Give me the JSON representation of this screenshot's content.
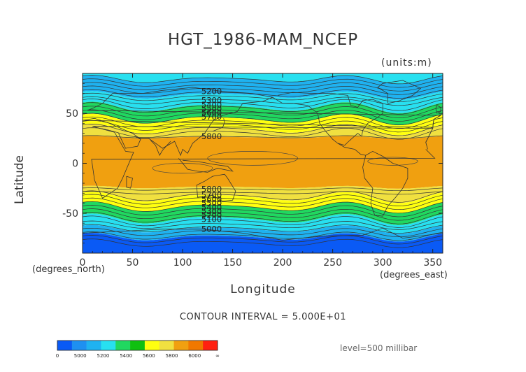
{
  "chart_data": {
    "type": "heatmap",
    "title": "HGT_1986-MAM_NCEP",
    "units_label": "(units:m)",
    "xlabel": "Longitude",
    "ylabel": "Latitude",
    "x_unit_label": "(degrees_east)",
    "y_unit_label": "(degrees_north)",
    "xlim": [
      0,
      360
    ],
    "ylim": [
      -90,
      90
    ],
    "x_ticks": [
      0,
      50,
      100,
      150,
      200,
      250,
      300,
      350
    ],
    "y_ticks": [
      -50,
      0,
      50
    ],
    "contour_interval_text": "CONTOUR INTERVAL = 5.000E+01",
    "level_text": "level=500 millibar",
    "contour_labels": [
      "5200",
      "5300",
      "5400",
      "5500",
      "5600",
      "5700",
      "5800",
      "5800",
      "5700",
      "5600",
      "5500",
      "5400",
      "5300",
      "5200",
      "5100",
      "5000"
    ],
    "colorbar": {
      "tick_labels": [
        "0",
        "5000",
        "5200",
        "5400",
        "5600",
        "5800",
        "6000",
        "∞"
      ],
      "colors": [
        "#0a5af5",
        "#1e90f0",
        "#1fb2f0",
        "#28e0f0",
        "#20d860",
        "#10c010",
        "#ffff10",
        "#f0e040",
        "#f0a010",
        "#f07800",
        "#ff2010"
      ]
    },
    "bands": [
      {
        "lat_top": 90,
        "lat_bottom": 84,
        "value_range": "5200-5300",
        "color": "#28e0f0"
      },
      {
        "lat_top": 84,
        "lat_bottom": 68,
        "value_range": "5100-5200",
        "color": "#1fb2f0"
      },
      {
        "lat_top": 68,
        "lat_bottom": 56,
        "value_range": "5200-5400",
        "color": "#28e0f0"
      },
      {
        "lat_top": 56,
        "lat_bottom": 44,
        "value_range": "5400-5600",
        "color": "#20d860"
      },
      {
        "lat_top": 44,
        "lat_bottom": 34,
        "value_range": "5600-5800",
        "color": "#ffff10"
      },
      {
        "lat_top": 34,
        "lat_bottom": 26,
        "value_range": "5700-5800",
        "color": "#f0e040"
      },
      {
        "lat_top": 26,
        "lat_bottom": -24,
        "value_range": "5800-5900",
        "color": "#f0a010"
      },
      {
        "lat_top": -24,
        "lat_bottom": -34,
        "value_range": "5700-5800",
        "color": "#f0e040"
      },
      {
        "lat_top": -34,
        "lat_bottom": -44,
        "value_range": "5600-5700",
        "color": "#ffff10"
      },
      {
        "lat_top": -44,
        "lat_bottom": -56,
        "value_range": "5400-5600",
        "color": "#20d860"
      },
      {
        "lat_top": -56,
        "lat_bottom": -66,
        "value_range": "5200-5400",
        "color": "#28e0f0"
      },
      {
        "lat_top": -66,
        "lat_bottom": -74,
        "value_range": "5000-5200",
        "color": "#1fb2f0"
      },
      {
        "lat_top": -74,
        "lat_bottom": -90,
        "value_range": "0-5000",
        "color": "#0a5af5"
      }
    ]
  }
}
